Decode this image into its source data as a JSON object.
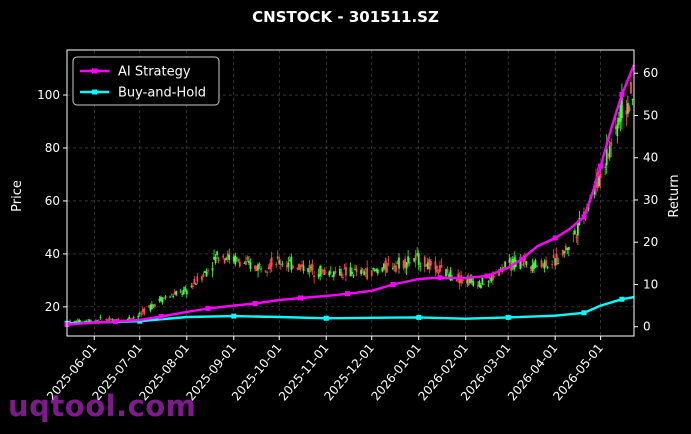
{
  "chart_data": {
    "type": "line",
    "title": "CNSTOCK - 301511.SZ",
    "ylabel_left": "Price",
    "ylabel_right": "Return",
    "ylim_left": [
      9,
      117
    ],
    "ylim_right": [
      -2.2,
      65.5
    ],
    "yticks_left": [
      20,
      40,
      60,
      80,
      100
    ],
    "yticks_right": [
      0,
      10,
      20,
      30,
      40,
      50,
      60
    ],
    "xlim": [
      "2025-05-14",
      "2026-05-23"
    ],
    "xticks": [
      "2025-06-01",
      "2025-07-01",
      "2025-08-01",
      "2025-09-01",
      "2025-10-01",
      "2025-11-01",
      "2025-12-01",
      "2026-01-01",
      "2026-02-01",
      "2026-03-01",
      "2026-04-01",
      "2026-05-01"
    ],
    "grid": true,
    "legend_position": "top-left",
    "series": [
      {
        "name": "AI Strategy",
        "axis": "right",
        "color": "#ff00ff",
        "points": [
          [
            "2025-05-14",
            0.5
          ],
          [
            "2025-06-01",
            1.0
          ],
          [
            "2025-06-15",
            1.2
          ],
          [
            "2025-07-01",
            1.6
          ],
          [
            "2025-07-15",
            2.4
          ],
          [
            "2025-08-01",
            3.5
          ],
          [
            "2025-08-15",
            4.3
          ],
          [
            "2025-09-01",
            5.0
          ],
          [
            "2025-09-15",
            5.5
          ],
          [
            "2025-10-01",
            6.3
          ],
          [
            "2025-10-15",
            6.8
          ],
          [
            "2025-11-01",
            7.3
          ],
          [
            "2025-11-15",
            7.8
          ],
          [
            "2025-12-01",
            8.5
          ],
          [
            "2025-12-15",
            10.0
          ],
          [
            "2026-01-01",
            11.3
          ],
          [
            "2026-01-15",
            11.6
          ],
          [
            "2026-02-01",
            11.5
          ],
          [
            "2026-02-15",
            12.0
          ],
          [
            "2026-03-01",
            14.0
          ],
          [
            "2026-03-10",
            16.0
          ],
          [
            "2026-03-20",
            19.0
          ],
          [
            "2026-04-01",
            21.0
          ],
          [
            "2026-04-10",
            23.0
          ],
          [
            "2026-04-20",
            26.0
          ],
          [
            "2026-04-25",
            31.0
          ],
          [
            "2026-05-01",
            38.0
          ],
          [
            "2026-05-08",
            47.0
          ],
          [
            "2026-05-15",
            55.0
          ],
          [
            "2026-05-23",
            62.0
          ]
        ]
      },
      {
        "name": "Buy-and-Hold",
        "axis": "right",
        "color": "#00ffff",
        "points": [
          [
            "2025-05-14",
            0.8
          ],
          [
            "2025-06-01",
            1.0
          ],
          [
            "2025-07-01",
            1.3
          ],
          [
            "2025-08-01",
            2.3
          ],
          [
            "2025-09-01",
            2.5
          ],
          [
            "2025-10-01",
            2.3
          ],
          [
            "2025-11-01",
            2.0
          ],
          [
            "2025-12-01",
            2.1
          ],
          [
            "2026-01-01",
            2.2
          ],
          [
            "2026-02-01",
            1.9
          ],
          [
            "2026-03-01",
            2.2
          ],
          [
            "2026-04-01",
            2.6
          ],
          [
            "2026-04-20",
            3.3
          ],
          [
            "2026-05-01",
            5.0
          ],
          [
            "2026-05-15",
            6.5
          ],
          [
            "2026-05-23",
            7.0
          ]
        ]
      },
      {
        "name": "Price",
        "axis": "left",
        "type": "candlestick",
        "points": [
          [
            "2025-05-14",
            14
          ],
          [
            "2025-06-01",
            15
          ],
          [
            "2025-06-20",
            15
          ],
          [
            "2025-07-01",
            17
          ],
          [
            "2025-07-15",
            23
          ],
          [
            "2025-08-01",
            26
          ],
          [
            "2025-08-15",
            34
          ],
          [
            "2025-08-22",
            40
          ],
          [
            "2025-09-01",
            38
          ],
          [
            "2025-09-15",
            35
          ],
          [
            "2025-10-01",
            37
          ],
          [
            "2025-10-10",
            36
          ],
          [
            "2025-11-01",
            33
          ],
          [
            "2025-11-15",
            33
          ],
          [
            "2025-12-01",
            33
          ],
          [
            "2025-12-15",
            36
          ],
          [
            "2026-01-01",
            38
          ],
          [
            "2026-01-10",
            35
          ],
          [
            "2026-02-01",
            30
          ],
          [
            "2026-02-15",
            29
          ],
          [
            "2026-03-01",
            36
          ],
          [
            "2026-03-10",
            37
          ],
          [
            "2026-03-20",
            36
          ],
          [
            "2026-04-01",
            37
          ],
          [
            "2026-04-10",
            43
          ],
          [
            "2026-04-20",
            55
          ],
          [
            "2026-05-01",
            70
          ],
          [
            "2026-05-10",
            85
          ],
          [
            "2026-05-15",
            95
          ],
          [
            "2026-05-23",
            98
          ]
        ]
      }
    ]
  },
  "watermark": "uqtool.com"
}
